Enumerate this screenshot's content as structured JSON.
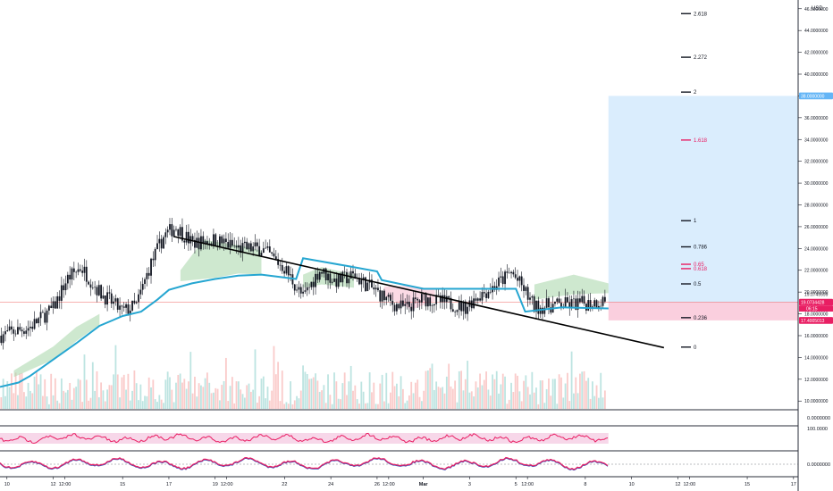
{
  "chart_data": {
    "type": "candlestick",
    "currency_label": "USD",
    "y_ticks": [
      "46.0000000",
      "44.0000000",
      "42.0000000",
      "40.0000000",
      "38.0000000",
      "36.0000000",
      "34.0000000",
      "32.0000000",
      "30.0000000",
      "28.0000000",
      "26.0000000",
      "24.0000000",
      "22.0000000",
      "20.0000000",
      "18.0000000",
      "16.0000000",
      "14.0000000",
      "12.0000000",
      "10.0000000"
    ],
    "y_tick_values": [
      46,
      44,
      42,
      40,
      38,
      36,
      34,
      32,
      30,
      28,
      26,
      24,
      22,
      20,
      18,
      16,
      14,
      12,
      10
    ],
    "ylim": [
      9.2,
      46.8
    ],
    "x_ticks": [
      "10",
      "12",
      "12:00",
      "15",
      "17",
      "19",
      "12:00",
      "22",
      "24",
      "26",
      "12:00",
      "Mar",
      "3",
      "5",
      "12:00",
      "8",
      "10",
      "12",
      "12:00",
      "15",
      "17"
    ],
    "x_tick_values": [
      0,
      2,
      2.5,
      5,
      7,
      9,
      9.5,
      12,
      14,
      16,
      16.5,
      18,
      20,
      22,
      22.5,
      25,
      27,
      29,
      29.5,
      32,
      34
    ],
    "x_range": [
      -0.3,
      34.2
    ],
    "price_labels": {
      "target": "38.0000000",
      "current": "19.0734428",
      "countdown": "06:15",
      "upper": "19.0749599",
      "mid": "18.0000000",
      "stop": "17.4005013"
    },
    "price_values": {
      "target": 38.0,
      "current": 19.07,
      "upper": 19.27,
      "mid": 18.0,
      "stop": 17.4
    },
    "fib_levels": [
      {
        "label": "2.618",
        "value": 45.55,
        "color": "#131722"
      },
      {
        "label": "2.272",
        "value": 41.55,
        "color": "#131722"
      },
      {
        "label": "2",
        "value": 38.35,
        "color": "#131722"
      },
      {
        "label": "1.618",
        "value": 33.95,
        "color": "#e91e63"
      },
      {
        "label": "1",
        "value": 26.55,
        "color": "#131722"
      },
      {
        "label": "0.786",
        "value": 24.15,
        "color": "#131722"
      },
      {
        "label": "0.65",
        "value": 22.55,
        "color": "#e91e63"
      },
      {
        "label": "0.618",
        "value": 22.15,
        "color": "#e91e63"
      },
      {
        "label": "0.5",
        "value": 20.75,
        "color": "#131722"
      },
      {
        "label": "0.236",
        "value": 17.65,
        "color": "#131722"
      },
      {
        "label": "0",
        "value": 14.95,
        "color": "#131722"
      }
    ],
    "trendline": {
      "from": [
        7.2,
        25.1
      ],
      "to": [
        28.4,
        14.9
      ],
      "color": "#000000"
    },
    "baseline_line": [
      [
        -0.3,
        11.3
      ],
      [
        0.5,
        11.7
      ],
      [
        1,
        12.3
      ],
      [
        2,
        13.8
      ],
      [
        3,
        15.3
      ],
      [
        4,
        16.9
      ],
      [
        5,
        17.8
      ],
      [
        5.8,
        18.2
      ],
      [
        6.5,
        19.3
      ],
      [
        7,
        20.2
      ],
      [
        8,
        20.8
      ],
      [
        9,
        21.2
      ],
      [
        10,
        21.5
      ],
      [
        11,
        21.6
      ],
      [
        12.5,
        21.2
      ],
      [
        12.8,
        23.1
      ],
      [
        14.7,
        22.4
      ],
      [
        16,
        21.9
      ],
      [
        16.2,
        21.1
      ],
      [
        18,
        20.3
      ],
      [
        20,
        20.3
      ],
      [
        22,
        20.3
      ],
      [
        22.4,
        18.2
      ],
      [
        24,
        18.6
      ],
      [
        26,
        18.5
      ]
    ],
    "baseline_color": "#26a6d1",
    "trade_projection": {
      "x_start": 26,
      "x_end": 34.2,
      "entry": 19.07,
      "target": 38.0,
      "stop": 17.4,
      "profit_color": "#bbdefb",
      "loss_color": "#f8bbd0"
    },
    "volume_ylim": [
      0,
      2000
    ],
    "oscillator_1": {
      "label": "100.0000",
      "color": "#e91e63",
      "fill": "#f3c6e0"
    },
    "oscillator_2": {
      "label": "0.0000000",
      "color": "#e91e63",
      "signal_color": "#3f51b5"
    },
    "empty_pane_label": "0.0000000"
  }
}
